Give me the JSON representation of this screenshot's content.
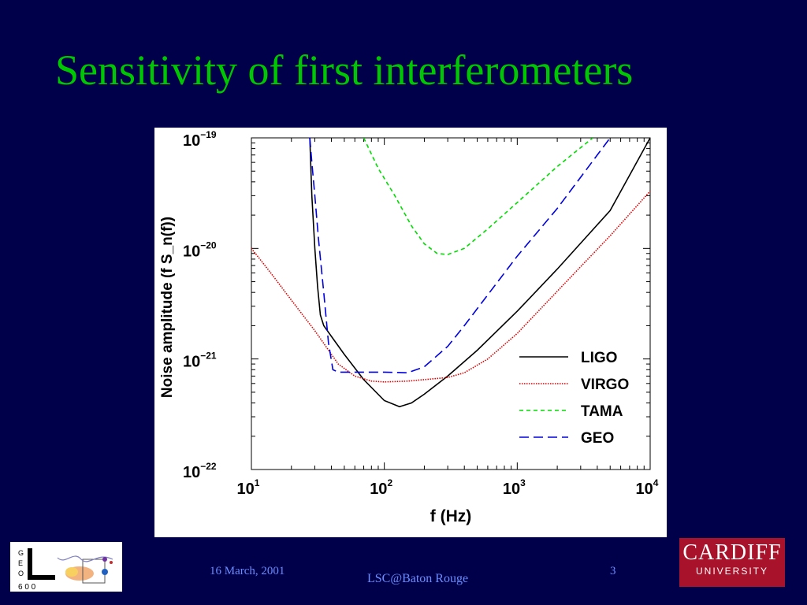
{
  "slide": {
    "title": "Sensitivity of first interferometers",
    "footer_date": "16 March, 2001",
    "footer_venue": "LSC@Baton Rouge",
    "page_number": "3"
  },
  "logos": {
    "left_text": [
      "G",
      "E",
      "O"
    ],
    "left_number": "6 0 0",
    "right_name": "CARDIFF",
    "right_sub": "UNIVERSITY"
  },
  "chart_data": {
    "type": "line",
    "xlabel": "f (Hz)",
    "ylabel": "Noise amplitude (f S_n(f))",
    "x_scale": "log",
    "y_scale": "log",
    "xlim": [
      10,
      10000
    ],
    "ylim": [
      1e-22,
      1e-19
    ],
    "x_ticks": [
      {
        "base": "10",
        "exp": "1",
        "value": 10
      },
      {
        "base": "10",
        "exp": "2",
        "value": 100
      },
      {
        "base": "10",
        "exp": "3",
        "value": 1000
      },
      {
        "base": "10",
        "exp": "4",
        "value": 10000
      }
    ],
    "y_ticks": [
      {
        "base": "10",
        "exp": "−19",
        "value": 1e-19
      },
      {
        "base": "10",
        "exp": "−20",
        "value": 1e-20
      },
      {
        "base": "10",
        "exp": "−21",
        "value": 1e-21
      },
      {
        "base": "10",
        "exp": "−22",
        "value": 1e-22
      }
    ],
    "grid": false,
    "legend_position": "right",
    "series": [
      {
        "name": "LIGO",
        "color": "#000000",
        "dash": "solid",
        "x": [
          27.5,
          28.5,
          30,
          31.5,
          33,
          35,
          40,
          50,
          70,
          100,
          130,
          160,
          200,
          300,
          500,
          1000,
          2000,
          5000,
          10000
        ],
        "y": [
          1e-19,
          3e-20,
          1e-20,
          4.5e-21,
          2.5e-21,
          2e-21,
          1.6e-21,
          1.1e-21,
          6.5e-22,
          4.2e-22,
          3.7e-22,
          4e-22,
          4.8e-22,
          7e-22,
          1.2e-21,
          2.7e-21,
          6.5e-21,
          2.2e-20,
          1e-19
        ]
      },
      {
        "name": "VIRGO",
        "color": "#e00000",
        "dash": "dotted",
        "x": [
          10,
          14,
          20,
          30,
          45,
          60,
          80,
          100,
          150,
          200,
          300,
          400,
          600,
          1000,
          2000,
          5000,
          10000
        ],
        "y": [
          1e-20,
          6e-21,
          3.4e-21,
          1.8e-21,
          9e-22,
          7e-22,
          6.3e-22,
          6.2e-22,
          6.3e-22,
          6.5e-22,
          6.8e-22,
          7.5e-22,
          1e-21,
          1.7e-21,
          4.1e-21,
          1.3e-20,
          3.3e-20
        ]
      },
      {
        "name": "TAMA",
        "color": "#00dd00",
        "dash": "short-dash",
        "x": [
          70,
          90,
          120,
          160,
          200,
          250,
          300,
          400,
          600,
          1000,
          2000,
          3700
        ],
        "y": [
          1e-19,
          5.3e-20,
          3e-20,
          1.6e-20,
          1.1e-20,
          9e-21,
          8.8e-21,
          1e-20,
          1.5e-20,
          2.6e-20,
          5.5e-20,
          1e-19
        ]
      },
      {
        "name": "GEO",
        "color": "#0000e0",
        "dash": "long-dash",
        "x": [
          27.5,
          28.5,
          30,
          32,
          35,
          38,
          41,
          45,
          60,
          100,
          150,
          200,
          300,
          400,
          600,
          1000,
          2000,
          5000
        ],
        "y": [
          1e-19,
          6e-20,
          3e-20,
          1.2e-20,
          4e-21,
          1.4e-21,
          8e-22,
          7.6e-22,
          7.6e-22,
          7.6e-22,
          7.5e-22,
          8.5e-22,
          1.3e-21,
          2e-21,
          3.8e-21,
          8.5e-21,
          2.3e-20,
          1e-19
        ]
      }
    ]
  }
}
